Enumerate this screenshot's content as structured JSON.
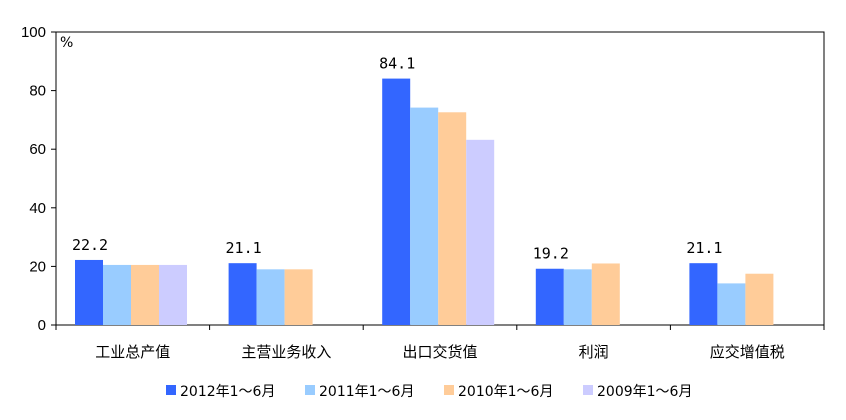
{
  "chart_data": {
    "type": "bar",
    "categories": [
      "工业总产值",
      "主营业务收入",
      "出口交货值",
      "利润",
      "应交增值税"
    ],
    "series": [
      {
        "name": "2012年1～6月",
        "color": "#3366ff",
        "values": [
          22.2,
          21.1,
          84.1,
          19.2,
          21.1
        ]
      },
      {
        "name": "2011年1～6月",
        "color": "#99ccff",
        "values": [
          20.5,
          19.0,
          74.2,
          19.0,
          14.2
        ]
      },
      {
        "name": "2010年1～6月",
        "color": "#ffcc99",
        "values": [
          20.5,
          19.0,
          72.6,
          21.0,
          17.5
        ]
      },
      {
        "name": "2009年1～6月",
        "color": "#ccccff",
        "values": [
          20.5,
          null,
          63.2,
          null,
          null
        ]
      }
    ],
    "data_labels": [
      "22.2",
      "21.1",
      "84.1",
      "19.2",
      "21.1"
    ],
    "yticks": [
      "0",
      "20",
      "40",
      "60",
      "80",
      "100"
    ],
    "ylim": [
      0,
      100
    ],
    "yunit": "%",
    "grid": false,
    "legend_position": "bottom"
  }
}
